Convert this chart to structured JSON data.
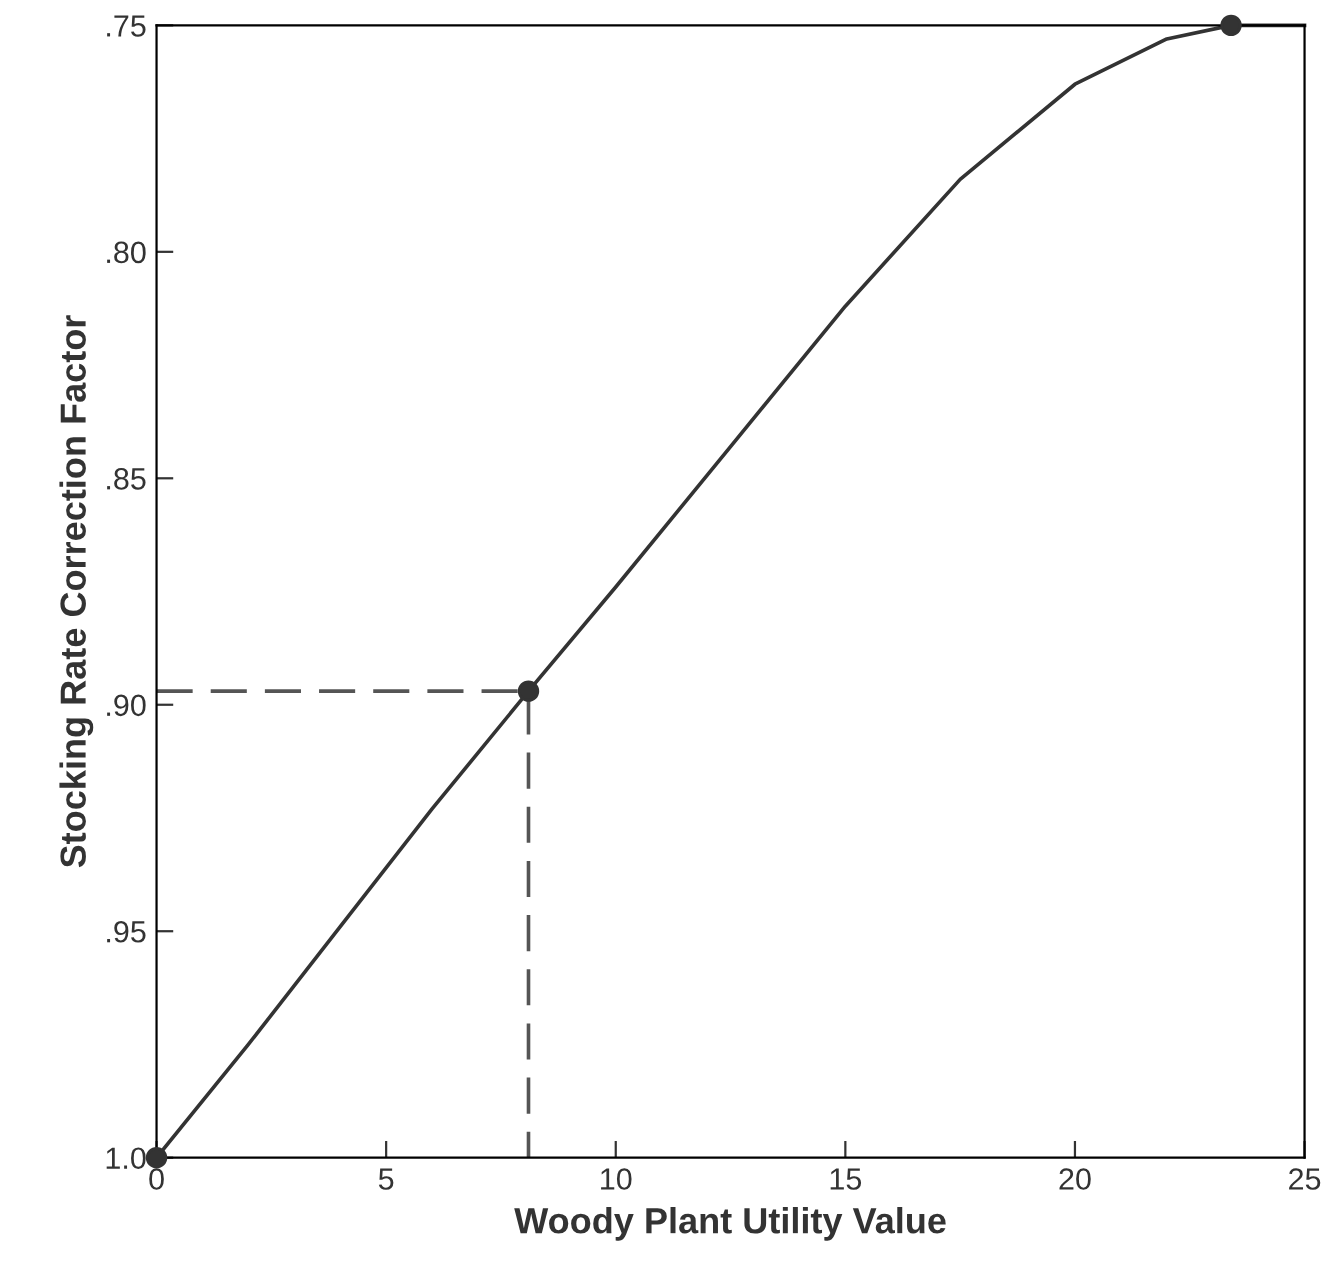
{
  "chart_data": {
    "type": "line",
    "xlabel": "Woody Plant Utility Value",
    "ylabel": "Stocking Rate Correction Factor",
    "xlim": [
      0,
      25
    ],
    "xticks": [
      0,
      5,
      10,
      15,
      20,
      25
    ],
    "ylim": [
      1.0,
      0.75
    ],
    "yticks": [
      {
        "value": 0.75,
        "label": ".75"
      },
      {
        "value": 0.8,
        "label": ".80"
      },
      {
        "value": 0.85,
        "label": ".85"
      },
      {
        "value": 0.9,
        "label": ".90"
      },
      {
        "value": 0.95,
        "label": ".95"
      },
      {
        "value": 1.0,
        "label": "1.0"
      }
    ],
    "grid": false,
    "legend": false,
    "series": [
      {
        "color": "#333333",
        "line_style": "solid",
        "marker": "none",
        "x": [
          0,
          2,
          4,
          6,
          8.1,
          10,
          12.5,
          15,
          17.5,
          20,
          22,
          23.4,
          25
        ],
        "values": [
          1.0,
          0.975,
          0.949,
          0.923,
          0.897,
          0.874,
          0.843,
          0.812,
          0.784,
          0.763,
          0.753,
          0.75,
          0.75
        ]
      },
      {
        "color": "#555555",
        "line_style": "dashed",
        "marker": "none",
        "x": [
          0,
          8.1,
          8.1
        ],
        "values": [
          0.897,
          0.897,
          1.0
        ]
      },
      {
        "type": "scatter",
        "color": "#333333",
        "marker": "circle",
        "x": [
          0,
          8.1,
          23.4
        ],
        "values": [
          1.0,
          0.897,
          0.75
        ]
      }
    ]
  }
}
